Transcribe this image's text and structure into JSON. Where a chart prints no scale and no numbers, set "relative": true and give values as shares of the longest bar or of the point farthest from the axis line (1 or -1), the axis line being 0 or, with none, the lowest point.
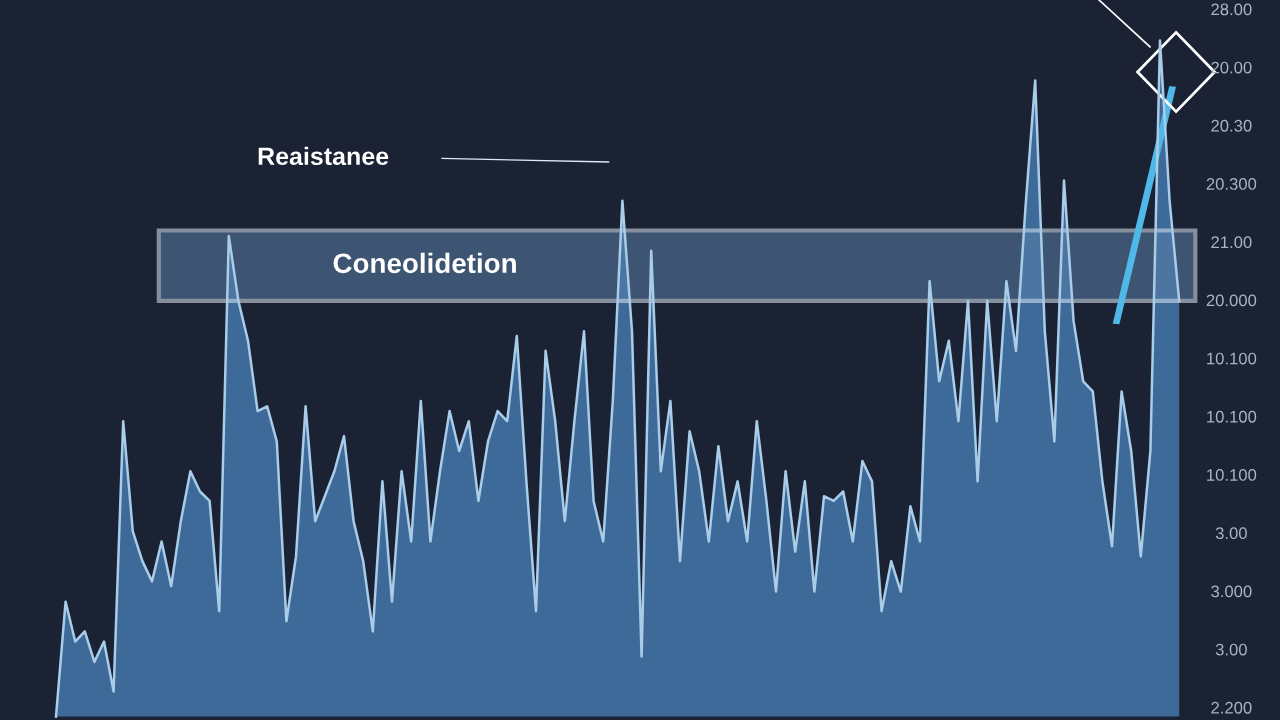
{
  "chart_data": {
    "type": "area",
    "relative": true,
    "categories": [
      null,
      null,
      null,
      null,
      null,
      null,
      null,
      null,
      null,
      null,
      null,
      null,
      null,
      null,
      null,
      null,
      null,
      null,
      null,
      null,
      null,
      null,
      null,
      null,
      null,
      null,
      null,
      null,
      null,
      null,
      null,
      null,
      null,
      null,
      null,
      null,
      null,
      null,
      null,
      null,
      null,
      null,
      null,
      null,
      null,
      null,
      null,
      null,
      null,
      null,
      null,
      null,
      null,
      null,
      null,
      null,
      null,
      null,
      null,
      null,
      null,
      null,
      null,
      null,
      null,
      null,
      null,
      null,
      null,
      null,
      null,
      null,
      null,
      null,
      null,
      null,
      null,
      null,
      null,
      null,
      null,
      null,
      null,
      null,
      null,
      null,
      null,
      null,
      null,
      null,
      null,
      null,
      null,
      null,
      null,
      null,
      null,
      null,
      null,
      null,
      null,
      null,
      null,
      null,
      null,
      null,
      null,
      null,
      null,
      null,
      null,
      null,
      null,
      null,
      null,
      null,
      null,
      null
    ],
    "series": [
      {
        "color": "#3f6f9f",
        "values": [
          0,
          0.17,
          0.111,
          0.126,
          0.081,
          0.111,
          0.037,
          0.437,
          0.274,
          0.23,
          0.2,
          0.259,
          0.193,
          0.289,
          0.363,
          0.333,
          0.319,
          0.156,
          0.711,
          0.615,
          0.556,
          0.452,
          0.459,
          0.407,
          0.141,
          0.237,
          0.459,
          0.289,
          0.326,
          0.363,
          0.415,
          0.289,
          0.23,
          0.126,
          0.348,
          0.17,
          0.363,
          0.259,
          0.467,
          0.259,
          0.363,
          0.452,
          0.393,
          0.437,
          0.319,
          0.407,
          0.452,
          0.437,
          0.563,
          0.348,
          0.156,
          0.541,
          0.437,
          0.289,
          0.437,
          0.57,
          0.319,
          0.259,
          0.467,
          0.763,
          0.57,
          0.089,
          0.689,
          0.363,
          0.467,
          0.23,
          0.422,
          0.363,
          0.259,
          0.4,
          0.289,
          0.348,
          0.259,
          0.437,
          0.319,
          0.185,
          0.363,
          0.244,
          0.348,
          0.185,
          0.326,
          0.319,
          0.333,
          0.259,
          0.378,
          0.348,
          0.156,
          0.23,
          0.185,
          0.311,
          0.259,
          0.644,
          0.496,
          0.556,
          0.437,
          0.615,
          0.348,
          0.615,
          0.437,
          0.644,
          0.541,
          0.756,
          0.941,
          0.57,
          0.407,
          0.793,
          0.585,
          0.496,
          0.481,
          0.348,
          0.252,
          0.481,
          0.393,
          0.237,
          0.393,
          1,
          0.763,
          0.615
        ]
      }
    ],
    "bands": [
      {
        "axis": "y",
        "from": 0.615,
        "to": 0.719,
        "label": "Coneolidetion",
        "color": "#5a7fa8"
      }
    ],
    "annotations": [
      "Reaistanee",
      "28.00",
      "20.00",
      "20.30",
      "20.300",
      "21.00",
      "20.000",
      "10.100",
      "10.100",
      "10.100",
      "3.00",
      "3.000",
      "3.00",
      "2.200"
    ],
    "grid": false,
    "legend": false
  }
}
